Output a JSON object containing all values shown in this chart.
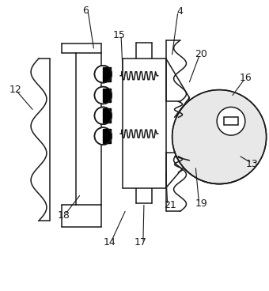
{
  "bg_color": "#ffffff",
  "line_color": "#1a1a1a",
  "label_color": "#1a1a1a",
  "figsize": [
    3.4,
    3.68
  ],
  "dpi": 100
}
